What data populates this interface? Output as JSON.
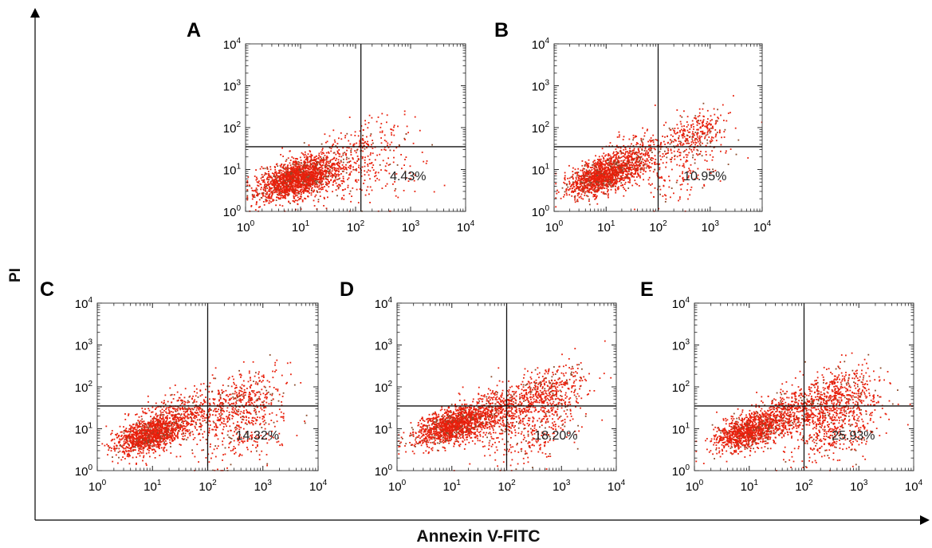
{
  "figure": {
    "y_axis_title": "PI",
    "x_axis_title": "Annexin V-FITC"
  },
  "chart_data": [
    {
      "type": "scatter",
      "panel": "A",
      "xscale": "log",
      "yscale": "log",
      "xlim": [
        1,
        10000
      ],
      "ylim": [
        1,
        10000
      ],
      "xticks": [
        "10^0",
        "10^1",
        "10^2",
        "10^3",
        "10^4"
      ],
      "yticks": [
        "10^0",
        "10^1",
        "10^2",
        "10^3",
        "10^4"
      ],
      "quadrant_gate": {
        "x": 125,
        "y": 35
      },
      "annotation": "4.43%",
      "colors": {
        "points": "#e8200c",
        "lines": "#111111"
      },
      "clusters": [
        {
          "center": [
            8,
            6
          ],
          "spread": [
            0.35,
            0.22
          ],
          "count": 1700
        },
        {
          "center": [
            30,
            12
          ],
          "spread": [
            0.45,
            0.35
          ],
          "count": 350
        },
        {
          "center": [
            180,
            60
          ],
          "spread": [
            0.35,
            0.25
          ],
          "count": 90
        },
        {
          "center": [
            250,
            8
          ],
          "spread": [
            0.5,
            0.4
          ],
          "count": 130
        }
      ]
    },
    {
      "type": "scatter",
      "panel": "B",
      "xscale": "log",
      "yscale": "log",
      "xlim": [
        1,
        10000
      ],
      "ylim": [
        1,
        10000
      ],
      "xticks": [
        "10^0",
        "10^1",
        "10^2",
        "10^3",
        "10^4"
      ],
      "yticks": [
        "10^0",
        "10^1",
        "10^2",
        "10^3",
        "10^4"
      ],
      "quadrant_gate": {
        "x": 100,
        "y": 35
      },
      "annotation": "10.95%",
      "colors": {
        "points": "#e8200c",
        "lines": "#111111"
      },
      "clusters": [
        {
          "center": [
            8,
            7
          ],
          "spread": [
            0.32,
            0.2
          ],
          "count": 1300
        },
        {
          "center": [
            40,
            20
          ],
          "spread": [
            0.4,
            0.3
          ],
          "count": 450
        },
        {
          "center": [
            500,
            80
          ],
          "spread": [
            0.3,
            0.25
          ],
          "count": 260
        },
        {
          "center": [
            300,
            10
          ],
          "spread": [
            0.45,
            0.4
          ],
          "count": 160
        }
      ]
    },
    {
      "type": "scatter",
      "panel": "C",
      "xscale": "log",
      "yscale": "log",
      "xlim": [
        1,
        10000
      ],
      "ylim": [
        1,
        10000
      ],
      "xticks": [
        "10^0",
        "10^1",
        "10^2",
        "10^3",
        "10^4"
      ],
      "yticks": [
        "10^0",
        "10^1",
        "10^2",
        "10^3",
        "10^4"
      ],
      "quadrant_gate": {
        "x": 100,
        "y": 35
      },
      "annotation": "14.32%",
      "colors": {
        "points": "#e8200c",
        "lines": "#111111"
      },
      "clusters": [
        {
          "center": [
            8,
            7
          ],
          "spread": [
            0.3,
            0.2
          ],
          "count": 1200
        },
        {
          "center": [
            40,
            22
          ],
          "spread": [
            0.4,
            0.3
          ],
          "count": 550
        },
        {
          "center": [
            500,
            50
          ],
          "spread": [
            0.35,
            0.35
          ],
          "count": 350
        },
        {
          "center": [
            400,
            8
          ],
          "spread": [
            0.4,
            0.4
          ],
          "count": 220
        }
      ]
    },
    {
      "type": "scatter",
      "panel": "D",
      "xscale": "log",
      "yscale": "log",
      "xlim": [
        1,
        10000
      ],
      "ylim": [
        1,
        10000
      ],
      "xticks": [
        "10^0",
        "10^1",
        "10^2",
        "10^3",
        "10^4"
      ],
      "yticks": [
        "10^0",
        "10^1",
        "10^2",
        "10^3",
        "10^4"
      ],
      "quadrant_gate": {
        "x": 100,
        "y": 35
      },
      "annotation": "18.20%",
      "colors": {
        "points": "#e8200c",
        "lines": "#111111"
      },
      "clusters": [
        {
          "center": [
            10,
            12
          ],
          "spread": [
            0.35,
            0.2
          ],
          "count": 1300
        },
        {
          "center": [
            60,
            25
          ],
          "spread": [
            0.4,
            0.3
          ],
          "count": 600
        },
        {
          "center": [
            600,
            80
          ],
          "spread": [
            0.35,
            0.3
          ],
          "count": 450
        },
        {
          "center": [
            300,
            8
          ],
          "spread": [
            0.45,
            0.35
          ],
          "count": 260
        }
      ]
    },
    {
      "type": "scatter",
      "panel": "E",
      "xscale": "log",
      "yscale": "log",
      "xlim": [
        1,
        10000
      ],
      "ylim": [
        1,
        10000
      ],
      "xticks": [
        "10^0",
        "10^1",
        "10^2",
        "10^3",
        "10^4"
      ],
      "yticks": [
        "10^0",
        "10^1",
        "10^2",
        "10^3",
        "10^4"
      ],
      "quadrant_gate": {
        "x": 100,
        "y": 35
      },
      "annotation": "25.93%",
      "colors": {
        "points": "#e8200c",
        "lines": "#111111"
      },
      "clusters": [
        {
          "center": [
            10,
            9
          ],
          "spread": [
            0.32,
            0.2
          ],
          "count": 1100
        },
        {
          "center": [
            60,
            25
          ],
          "spread": [
            0.4,
            0.3
          ],
          "count": 550
        },
        {
          "center": [
            400,
            60
          ],
          "spread": [
            0.4,
            0.35
          ],
          "count": 480
        },
        {
          "center": [
            400,
            10
          ],
          "spread": [
            0.45,
            0.35
          ],
          "count": 380
        }
      ]
    }
  ]
}
